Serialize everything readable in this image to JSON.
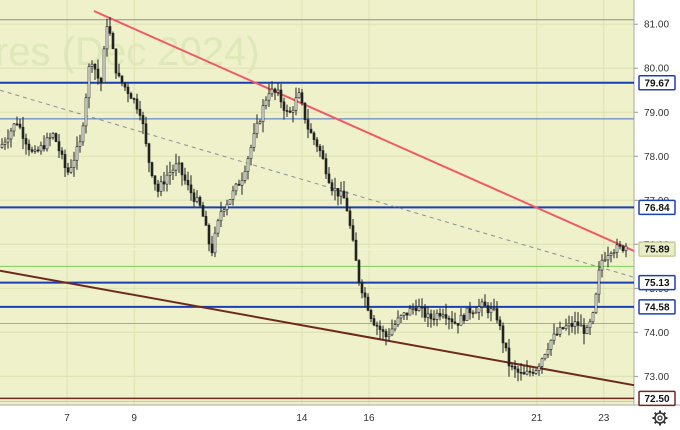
{
  "watermark": "res (Dec 2024)",
  "colors": {
    "plot_bg": "#eef1c9",
    "axis_bg": "#ffffff",
    "candle": "#222222",
    "blue_level": "#1a3fb0",
    "thin_blue": "#4a6fc8",
    "green_level": "#7ccf5a",
    "red_trend": "#ef5a6a",
    "brown_trend": "#6e2a1e",
    "dashed": "#8a8f99",
    "price_badge": "#e9edc6"
  },
  "chart_data": {
    "type": "candlestick",
    "title": "",
    "x_ticks": [
      "7",
      "9",
      "14",
      "16",
      "21",
      "23"
    ],
    "y_ticks": [
      "73.00",
      "74.00",
      "75.00",
      "76.00",
      "77.00",
      "78.00",
      "79.00",
      "80.00",
      "81.00"
    ],
    "ylim": [
      72.35,
      81.55
    ],
    "grid": true,
    "horizontal_levels": [
      {
        "value": 81.1,
        "color": "gray",
        "label": ""
      },
      {
        "value": 79.67,
        "color": "blue",
        "label": "79.67"
      },
      {
        "value": 78.85,
        "color": "thin-blue",
        "label": ""
      },
      {
        "value": 76.84,
        "color": "blue",
        "label": "76.84"
      },
      {
        "value": 75.89,
        "color": "price",
        "label": "75.89"
      },
      {
        "value": 75.5,
        "color": "green",
        "label": ""
      },
      {
        "value": 75.13,
        "color": "blue",
        "label": "75.13"
      },
      {
        "value": 74.58,
        "color": "blue",
        "label": "74.58"
      },
      {
        "value": 74.2,
        "color": "green",
        "label": ""
      },
      {
        "value": 72.5,
        "color": "brown",
        "label": "72.50"
      }
    ],
    "trendlines": [
      {
        "name": "",
        "color": "red",
        "style": "solid",
        "from": {
          "x": "7.8",
          "y": 81.3
        },
        "to": {
          "x": "23.9",
          "y": 75.85
        }
      },
      {
        "name": "",
        "color": "brown",
        "style": "solid",
        "from": {
          "x": "5.0",
          "y": 75.4
        },
        "to": {
          "x": "23.9",
          "y": 72.8
        }
      },
      {
        "name": "",
        "color": "gray",
        "style": "dashed",
        "from": {
          "x": "5.0",
          "y": 79.5
        },
        "to": {
          "x": "23.9",
          "y": 75.25
        }
      }
    ],
    "price_path": [
      [
        5.0,
        78.2
      ],
      [
        5.5,
        78.8
      ],
      [
        6.0,
        78.0
      ],
      [
        6.6,
        78.5
      ],
      [
        7.0,
        77.6
      ],
      [
        7.4,
        78.3
      ],
      [
        7.7,
        80.3
      ],
      [
        8.0,
        79.6
      ],
      [
        8.2,
        81.1
      ],
      [
        8.5,
        79.8
      ],
      [
        8.9,
        79.4
      ],
      [
        9.2,
        79.0
      ],
      [
        9.4,
        78.0
      ],
      [
        9.7,
        77.2
      ],
      [
        10.0,
        77.6
      ],
      [
        10.3,
        77.8
      ],
      [
        10.6,
        77.3
      ],
      [
        11.0,
        76.8
      ],
      [
        11.3,
        75.8
      ],
      [
        11.6,
        76.8
      ],
      [
        11.9,
        77.1
      ],
      [
        12.2,
        77.5
      ],
      [
        12.6,
        78.5
      ],
      [
        13.0,
        79.5
      ],
      [
        13.3,
        79.4
      ],
      [
        13.6,
        78.9
      ],
      [
        13.9,
        79.4
      ],
      [
        14.2,
        78.6
      ],
      [
        14.5,
        78.2
      ],
      [
        14.9,
        77.3
      ],
      [
        15.3,
        77.0
      ],
      [
        15.7,
        75.2
      ],
      [
        16.1,
        74.3
      ],
      [
        16.5,
        73.9
      ],
      [
        16.9,
        74.3
      ],
      [
        17.4,
        74.6
      ],
      [
        17.8,
        74.3
      ],
      [
        18.2,
        74.5
      ],
      [
        18.6,
        74.2
      ],
      [
        19.0,
        74.5
      ],
      [
        19.4,
        74.6
      ],
      [
        19.8,
        74.4
      ],
      [
        20.2,
        73.2
      ],
      [
        20.6,
        73.0
      ],
      [
        21.0,
        73.2
      ],
      [
        21.4,
        73.8
      ],
      [
        21.8,
        74.1
      ],
      [
        22.2,
        74.2
      ],
      [
        22.5,
        74.0
      ],
      [
        22.7,
        74.4
      ],
      [
        22.9,
        75.6
      ],
      [
        23.2,
        75.9
      ],
      [
        23.5,
        75.9
      ],
      [
        23.7,
        76.0
      ]
    ]
  }
}
